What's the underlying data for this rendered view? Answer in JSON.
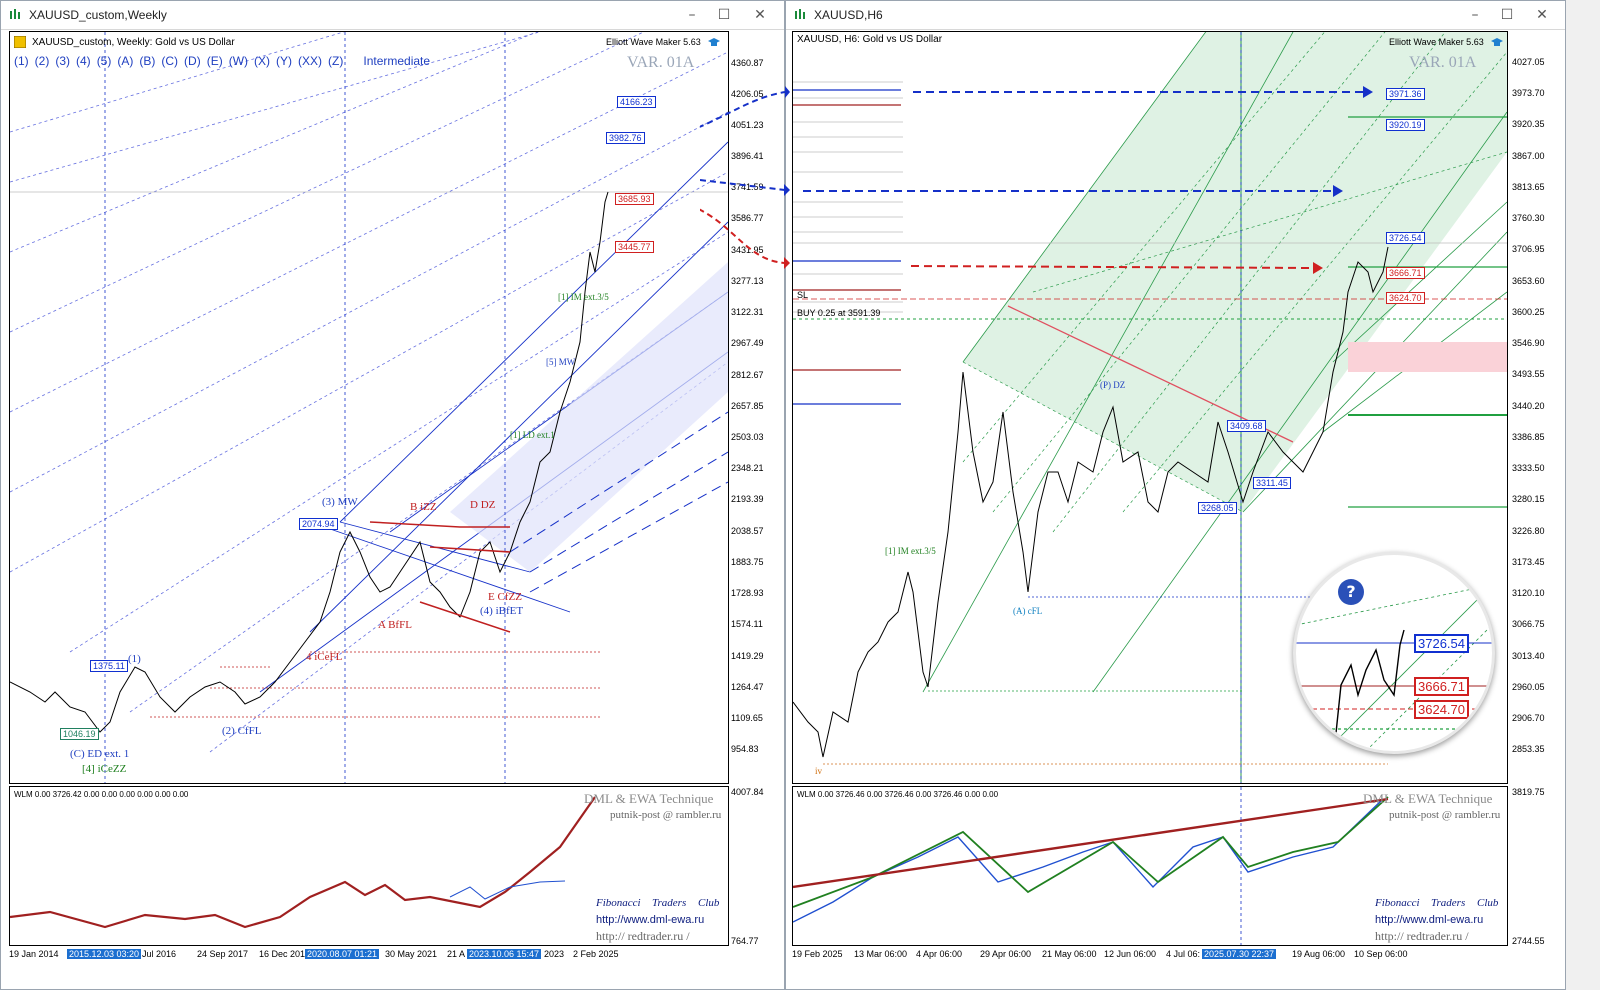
{
  "left": {
    "window_title": "XAUUSD_custom,Weekly",
    "chart_header": "XAUUSD_custom, Weekly:  Gold vs US Dollar",
    "eww_label": "Elliott Wave Maker 5.63",
    "wave_degree_toolbar": [
      "(1)",
      "(2)",
      "(3)",
      "(4)",
      "(5)",
      "(A)",
      "(B)",
      "(C)",
      "(D)",
      "(E)",
      "(W)",
      "(X)",
      "(Y)",
      "(XX)",
      "(Z)"
    ],
    "degree_name": "Intermediate",
    "var_label": "VAR. 01A",
    "price_axis": [
      "4360.87",
      "4206.05",
      "4051.23",
      "3896.41",
      "3741.59",
      "3586.77",
      "3431.95",
      "3277.13",
      "3122.31",
      "2967.49",
      "2812.67",
      "2657.85",
      "2503.03",
      "2348.21",
      "2193.39",
      "2038.57",
      "1883.75",
      "1728.93",
      "1574.11",
      "1419.29",
      "1264.47",
      "1109.65",
      "954.83"
    ],
    "price_boxes": {
      "p4166": "4166.23",
      "p3982": "3982.76",
      "p3685": "3685.93",
      "p3445": "3445.77",
      "p2074": "2074.94",
      "p1375": "1375.11",
      "p1046": "1046.19"
    },
    "wave_labels": {
      "w3mw": "(3) MW",
      "w2cffl": "(2) CfFL",
      "c_ed": "(C) ED ext. 1",
      "iceZZ": "[4] iCeZZ",
      "w4ibfet": "(4) iBfET",
      "abffl": "A BfFL",
      "ecfzz": "E CfZZ",
      "ddz": "D DZ",
      "bizz": "B iZZ",
      "w4icefl": "4 iCeFL",
      "w1": "(1)",
      "im": "[1] IM ext.3/5",
      "ld": "[1] LD ext.1",
      "mw": "[5] MW"
    },
    "sub_header": "WLM  0.00  3726.42  0.00  0.00  0.00  0.00  0.00  0.00",
    "sub_axis": [
      "4007.84",
      "764.77"
    ],
    "date_axis": [
      "19 Jan 2014",
      "2015.12.03 03:20",
      "Jul 2016",
      "24 Sep 2017",
      "16 Dec 2019",
      "2020.08.07 01:21",
      "30 May 2021",
      "21 A",
      "2023.10.06 15:47",
      "2023",
      "2 Feb 2025"
    ],
    "watermark": "DML & EWA Technique",
    "email": "putnik-post @ rambler.ru",
    "fib_club": [
      "Fibonacci",
      "Traders",
      "Club"
    ],
    "url1": "http://www.dml-ewa.ru",
    "url2": "http://  redtrader.ru  /"
  },
  "right": {
    "window_title": "XAUUSD,H6",
    "chart_header": "XAUUSD, H6:  Gold vs US Dollar",
    "eww_label": "Elliott Wave Maker 5.63",
    "var_label": "VAR. 01A",
    "buy_label": "BUY 0.25 at 3591.39",
    "sl_label": "SL",
    "price_axis": [
      "4027.05",
      "3973.70",
      "3920.35",
      "3867.00",
      "3813.65",
      "3760.30",
      "3706.95",
      "3653.60",
      "3600.25",
      "3546.90",
      "3493.55",
      "3440.20",
      "3386.85",
      "3333.50",
      "3280.15",
      "3226.80",
      "3173.45",
      "3120.10",
      "3066.75",
      "3013.40",
      "2960.05",
      "2906.70",
      "2853.35"
    ],
    "price_boxes": {
      "p3971": "3971.36",
      "p3920": "3920.19",
      "p3726": "3726.54",
      "p3666": "3666.71",
      "p3624": "3624.70",
      "p3409": "3409.68",
      "p3311": "3311.45",
      "p3268": "3268.05"
    },
    "zoom_boxes": [
      "3726.54",
      "3666.71",
      "3624.70"
    ],
    "wave_labels": {
      "im": "[1] IM ext.3/5",
      "a_cfl": "(A) cFL",
      "pdz": "(P) DZ",
      "iv": "iv"
    },
    "sub_header": "WLM  0.00  3726.46  0.00  3726.46  0.00  3726.46  0.00  0.00",
    "sub_axis": [
      "3819.75",
      "2744.55"
    ],
    "date_axis": [
      "19 Feb 2025",
      "13 Mar 06:00",
      "4 Apr 06:00",
      "29 Apr 06:00",
      "21 May 06:00",
      "12 Jun 06:00",
      "4 Jul 06:",
      "2025.07.30 22:37",
      "19 Aug 06:00",
      "10 Sep 06:00"
    ],
    "watermark": "DML & EWA Technique",
    "email": "putnik-post @ rambler.ru",
    "fib_club": [
      "Fibonacci",
      "Traders",
      "Club"
    ],
    "url1": "http://www.dml-ewa.ru",
    "url2": "http://  redtrader.ru  /"
  },
  "colors": {
    "blue": "#1f3fc0",
    "red": "#c02020",
    "green": "#208020",
    "fill_green": "#dff2e4"
  }
}
